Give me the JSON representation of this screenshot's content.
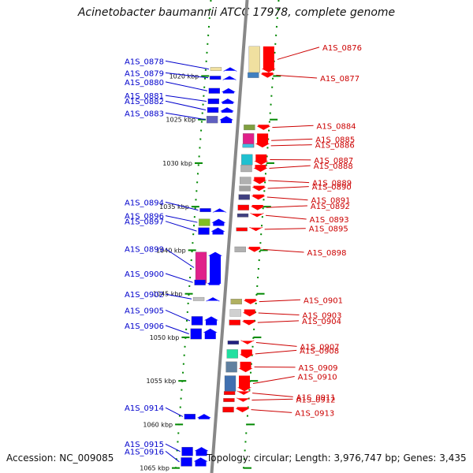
{
  "title": "Acinetobacter baumannii ATCC 17978, complete genome",
  "footer": {
    "accession": "Accession: NC_009085",
    "topology": "Topology: circular; Length: 3,976,747 bp; Genes: 3,435"
  },
  "colors": {
    "forward": "#0000ff",
    "reverse": "#ff0000",
    "backbone": "#888888",
    "ruler": "#008800"
  },
  "ruler": [
    {
      "label": "1020 kbp",
      "pos": 1020
    },
    {
      "label": "1025 kbp",
      "pos": 1025
    },
    {
      "label": "1030 kbp",
      "pos": 1030
    },
    {
      "label": "1035 kbp",
      "pos": 1035
    },
    {
      "label": "1040 kbp",
      "pos": 1040
    },
    {
      "label": "1045 kbp",
      "pos": 1045
    },
    {
      "label": "1050 kbp",
      "pos": 1050
    },
    {
      "label": "1055 kbp",
      "pos": 1055
    },
    {
      "label": "1060 kbp",
      "pos": 1060
    },
    {
      "label": "1065 kbp",
      "pos": 1065
    }
  ],
  "left_genes": [
    {
      "label": "A1S_0878",
      "pos": 1019.0,
      "color": "#f0e0a0",
      "len": 0.4
    },
    {
      "label": "A1S_0879",
      "pos": 1020.0,
      "color": "#0000ff",
      "len": 0.4
    },
    {
      "label": "A1S_0880",
      "pos": 1021.4,
      "color": "#0000ff",
      "len": 0.6
    },
    {
      "label": "A1S_0881",
      "pos": 1022.6,
      "color": "#0000ff",
      "len": 0.6
    },
    {
      "label": "A1S_0882",
      "pos": 1023.6,
      "color": "#0000ff",
      "len": 0.6
    },
    {
      "label": "A1S_0883",
      "pos": 1024.6,
      "color": "#6060c0",
      "len": 0.8
    },
    {
      "label": "A1S_0894",
      "pos": 1035.2,
      "color": "#0000ff",
      "len": 0.4
    },
    {
      "label": "A1S_0896",
      "pos": 1036.4,
      "color": "#80c020",
      "len": 0.8
    },
    {
      "label": "A1S_0897",
      "pos": 1037.4,
      "color": "#0000ff",
      "len": 0.8
    },
    {
      "label": "A1S_0899",
      "pos": 1040.2,
      "color": "#e0208a",
      "len": 3.6
    },
    {
      "label": "A1S_0900",
      "pos": 1043.4,
      "color": "#0000ff",
      "len": 0.6
    },
    {
      "label": "A1S_0902",
      "pos": 1045.4,
      "color": "#c0c0c0",
      "len": 0.4
    },
    {
      "label": "A1S_0905",
      "pos": 1047.6,
      "color": "#0000ff",
      "len": 1.0
    },
    {
      "label": "A1S_0906",
      "pos": 1049.0,
      "color": "#0000ff",
      "len": 1.2
    },
    {
      "label": "A1S_0914",
      "pos": 1058.8,
      "color": "#0000ff",
      "len": 0.6
    },
    {
      "label": "A1S_0915",
      "pos": 1062.6,
      "color": "#0000ff",
      "len": 1.0
    },
    {
      "label": "A1S_0916",
      "pos": 1063.8,
      "color": "#0000ff",
      "len": 1.0
    }
  ],
  "right_genes": [
    {
      "label": "A1S_0876",
      "pos": 1016.6,
      "color": "#f0e0a0",
      "len": 3.0
    },
    {
      "label": "A1S_0877",
      "pos": 1019.6,
      "color": "#4080c0",
      "len": 0.6
    },
    {
      "label": "A1S_0884",
      "pos": 1025.6,
      "color": "#80a040",
      "len": 0.6
    },
    {
      "label": "A1S_0885",
      "pos": 1026.6,
      "color": "#e0208a",
      "len": 1.6
    },
    {
      "label": "A1S_0886",
      "pos": 1027.8,
      "color": "#40c0e0",
      "len": 0.4
    },
    {
      "label": "A1S_0887",
      "pos": 1029.0,
      "color": "#20c0d0",
      "len": 1.2
    },
    {
      "label": "A1S_0888",
      "pos": 1030.2,
      "color": "#b0b0b0",
      "len": 0.8
    },
    {
      "label": "A1S_0889",
      "pos": 1031.6,
      "color": "#b0b0b0",
      "len": 0.8
    },
    {
      "label": "A1S_0890",
      "pos": 1032.6,
      "color": "#a0a0a0",
      "len": 0.6
    },
    {
      "label": "A1S_0891",
      "pos": 1033.6,
      "color": "#404080",
      "len": 0.6
    },
    {
      "label": "A1S_0892",
      "pos": 1034.8,
      "color": "#ff0000",
      "len": 0.6
    },
    {
      "label": "A1S_0893",
      "pos": 1035.8,
      "color": "#404080",
      "len": 0.4
    },
    {
      "label": "A1S_0895",
      "pos": 1037.4,
      "color": "#ff0000",
      "len": 0.4
    },
    {
      "label": "A1S_0898",
      "pos": 1039.6,
      "color": "#b0b0b0",
      "len": 0.6
    },
    {
      "label": "A1S_0901",
      "pos": 1045.6,
      "color": "#b0b060",
      "len": 0.6
    },
    {
      "label": "A1S_0903",
      "pos": 1046.8,
      "color": "#d0d0d0",
      "len": 0.8
    },
    {
      "label": "A1S_0904",
      "pos": 1048.0,
      "color": "#ff0000",
      "len": 0.6
    },
    {
      "label": "A1S_0907",
      "pos": 1050.4,
      "color": "#202080",
      "len": 0.4
    },
    {
      "label": "A1S_0908",
      "pos": 1051.4,
      "color": "#20e0a0",
      "len": 1.0
    },
    {
      "label": "A1S_0909",
      "pos": 1052.8,
      "color": "#6080a0",
      "len": 1.2
    },
    {
      "label": "A1S_0910",
      "pos": 1054.4,
      "color": "#4070b0",
      "len": 1.8
    },
    {
      "label": "A1S_0911",
      "pos": 1056.2,
      "color": "#ff0000",
      "len": 0.4
    },
    {
      "label": "A1S_0912",
      "pos": 1057.0,
      "color": "#ff0000",
      "len": 0.4
    },
    {
      "label": "A1S_0913",
      "pos": 1058.0,
      "color": "#ff0000",
      "len": 0.6
    }
  ]
}
